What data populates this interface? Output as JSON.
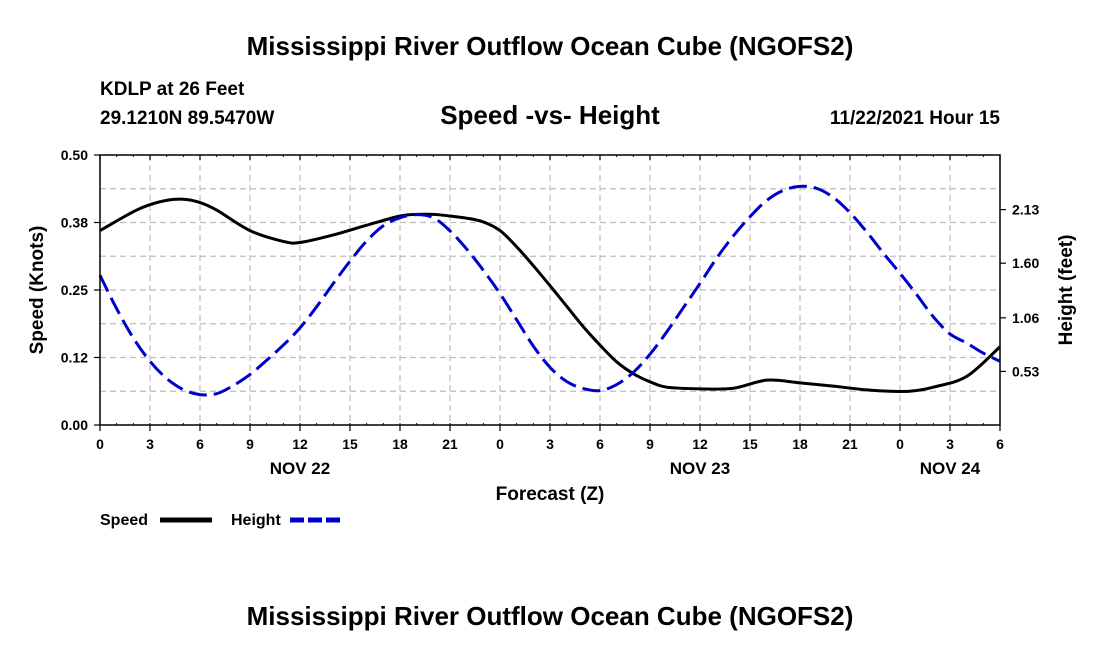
{
  "page": {
    "title": "Mississippi River Outflow Ocean Cube (NGOFS2)",
    "footer_title": "Mississippi River Outflow Ocean Cube (NGOFS2)",
    "station": "KDLP at 26 Feet",
    "coordinates": "29.1210N  89.5470W",
    "subtitle": "Speed -vs- Height",
    "timestamp": "11/22/2021 Hour 15"
  },
  "chart_data": {
    "type": "line",
    "xlabel": "Forecast (Z)",
    "ylabel_left": "Speed (Knots)",
    "ylabel_right": "Height (feet)",
    "x_range_hours": [
      0,
      54
    ],
    "x_tick_labels": [
      "0",
      "3",
      "6",
      "9",
      "12",
      "15",
      "18",
      "21",
      "0",
      "3",
      "6",
      "9",
      "12",
      "15",
      "18",
      "21",
      "0",
      "3",
      "6"
    ],
    "date_labels": [
      {
        "hour": 12,
        "label": "NOV 22"
      },
      {
        "hour": 36,
        "label": "NOV 23"
      },
      {
        "hour": 51,
        "label": "NOV 24"
      }
    ],
    "left_axis": {
      "min": 0.0,
      "max": 0.5,
      "ticks": [
        "0.00",
        "0.12",
        "0.25",
        "0.38",
        "0.50"
      ],
      "tick_values": [
        0.0,
        0.125,
        0.25,
        0.375,
        0.5
      ]
    },
    "right_axis": {
      "min": 0.0,
      "max": 2.67,
      "ticks": [
        "0.53",
        "1.06",
        "1.60",
        "2.13"
      ],
      "tick_values": [
        0.53,
        1.06,
        1.6,
        2.13
      ]
    },
    "grid": true,
    "series": [
      {
        "name": "Speed",
        "axis": "left",
        "style": "solid",
        "color": "#000000",
        "x": [
          0,
          2,
          3,
          4,
          5,
          6,
          7,
          9,
          11,
          12,
          14,
          16,
          18,
          19,
          20,
          21,
          22,
          23,
          24,
          25,
          26,
          27,
          28,
          29,
          30,
          31,
          32,
          33,
          34,
          36,
          38,
          40,
          42,
          44,
          46,
          48,
          49,
          50,
          52,
          54
        ],
        "values": [
          0.36,
          0.395,
          0.408,
          0.416,
          0.418,
          0.412,
          0.398,
          0.36,
          0.34,
          0.338,
          0.352,
          0.37,
          0.387,
          0.39,
          0.39,
          0.387,
          0.383,
          0.376,
          0.36,
          0.33,
          0.295,
          0.258,
          0.22,
          0.182,
          0.148,
          0.117,
          0.095,
          0.08,
          0.07,
          0.067,
          0.068,
          0.083,
          0.078,
          0.072,
          0.065,
          0.062,
          0.064,
          0.07,
          0.09,
          0.145
        ]
      },
      {
        "name": "Height",
        "axis": "right",
        "style": "dashed",
        "color": "#0000cc",
        "x": [
          0,
          1,
          2,
          3,
          4,
          5,
          6,
          7,
          8,
          9,
          10,
          11,
          12,
          13,
          14,
          15,
          16,
          17,
          18,
          19,
          20,
          21,
          22,
          23,
          24,
          25,
          26,
          27,
          28,
          29,
          30,
          31,
          32,
          33,
          34,
          35,
          36,
          37,
          38,
          39,
          40,
          41,
          42,
          43,
          44,
          45,
          46,
          47,
          48,
          49,
          50,
          51,
          52,
          53,
          54
        ],
        "values": [
          1.48,
          1.15,
          0.86,
          0.63,
          0.46,
          0.35,
          0.3,
          0.31,
          0.39,
          0.5,
          0.64,
          0.79,
          0.96,
          1.17,
          1.4,
          1.62,
          1.82,
          1.97,
          2.05,
          2.08,
          2.05,
          1.92,
          1.74,
          1.53,
          1.3,
          1.04,
          0.78,
          0.57,
          0.43,
          0.36,
          0.34,
          0.4,
          0.52,
          0.7,
          0.92,
          1.16,
          1.4,
          1.65,
          1.87,
          2.06,
          2.22,
          2.32,
          2.36,
          2.34,
          2.25,
          2.1,
          1.91,
          1.7,
          1.5,
          1.29,
          1.07,
          0.9,
          0.81,
          0.71,
          0.63
        ]
      }
    ],
    "legend": [
      {
        "label": "Speed",
        "style": "solid",
        "color": "#000000"
      },
      {
        "label": "Height",
        "style": "dashed",
        "color": "#0000cc"
      }
    ]
  }
}
